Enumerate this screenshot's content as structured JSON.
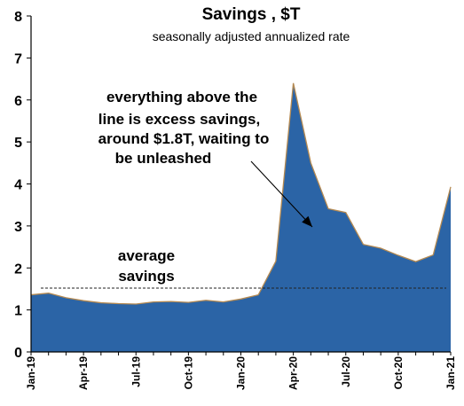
{
  "chart_data": {
    "type": "area",
    "title": "Savings , $T",
    "subtitle": "seasonally adjusted annualized rate",
    "xlabel": "",
    "ylabel": "",
    "ylim": [
      0,
      8
    ],
    "yticks": [
      "0",
      "1",
      "2",
      "3",
      "4",
      "5",
      "6",
      "7",
      "8"
    ],
    "x": [
      "Jan-19",
      "Feb-19",
      "Mar-19",
      "Apr-19",
      "May-19",
      "Jun-19",
      "Jul-19",
      "Aug-19",
      "Sep-19",
      "Oct-19",
      "Nov-19",
      "Dec-19",
      "Jan-20",
      "Feb-20",
      "Mar-20",
      "Apr-20",
      "May-20",
      "Jun-20",
      "Jul-20",
      "Aug-20",
      "Sep-20",
      "Oct-20",
      "Nov-20",
      "Dec-20",
      "Jan-21"
    ],
    "xtick_labels": [
      "Jan-19",
      "Apr-19",
      "Jul-19",
      "Oct-19",
      "Jan-20",
      "Apr-20",
      "Jul-20",
      "Oct-20",
      "Jan-21"
    ],
    "series": [
      {
        "values": [
          1.36,
          1.4,
          1.29,
          1.22,
          1.17,
          1.15,
          1.14,
          1.19,
          1.2,
          1.18,
          1.23,
          1.19,
          1.26,
          1.36,
          2.16,
          6.4,
          4.5,
          3.41,
          3.32,
          2.56,
          2.47,
          2.3,
          2.15,
          2.31,
          3.93
        ],
        "color": "#2b64a6"
      }
    ],
    "reference_line": {
      "value": 1.52,
      "style": "dashed"
    },
    "annotations": [
      {
        "id": "excess",
        "lines": [
          "everything above the",
          "line is excess savings,",
          "around $1.8T, waiting to",
          "be unleashed"
        ]
      },
      {
        "id": "average",
        "lines": [
          "average",
          "savings"
        ]
      }
    ],
    "grid": false,
    "legend": "none"
  }
}
